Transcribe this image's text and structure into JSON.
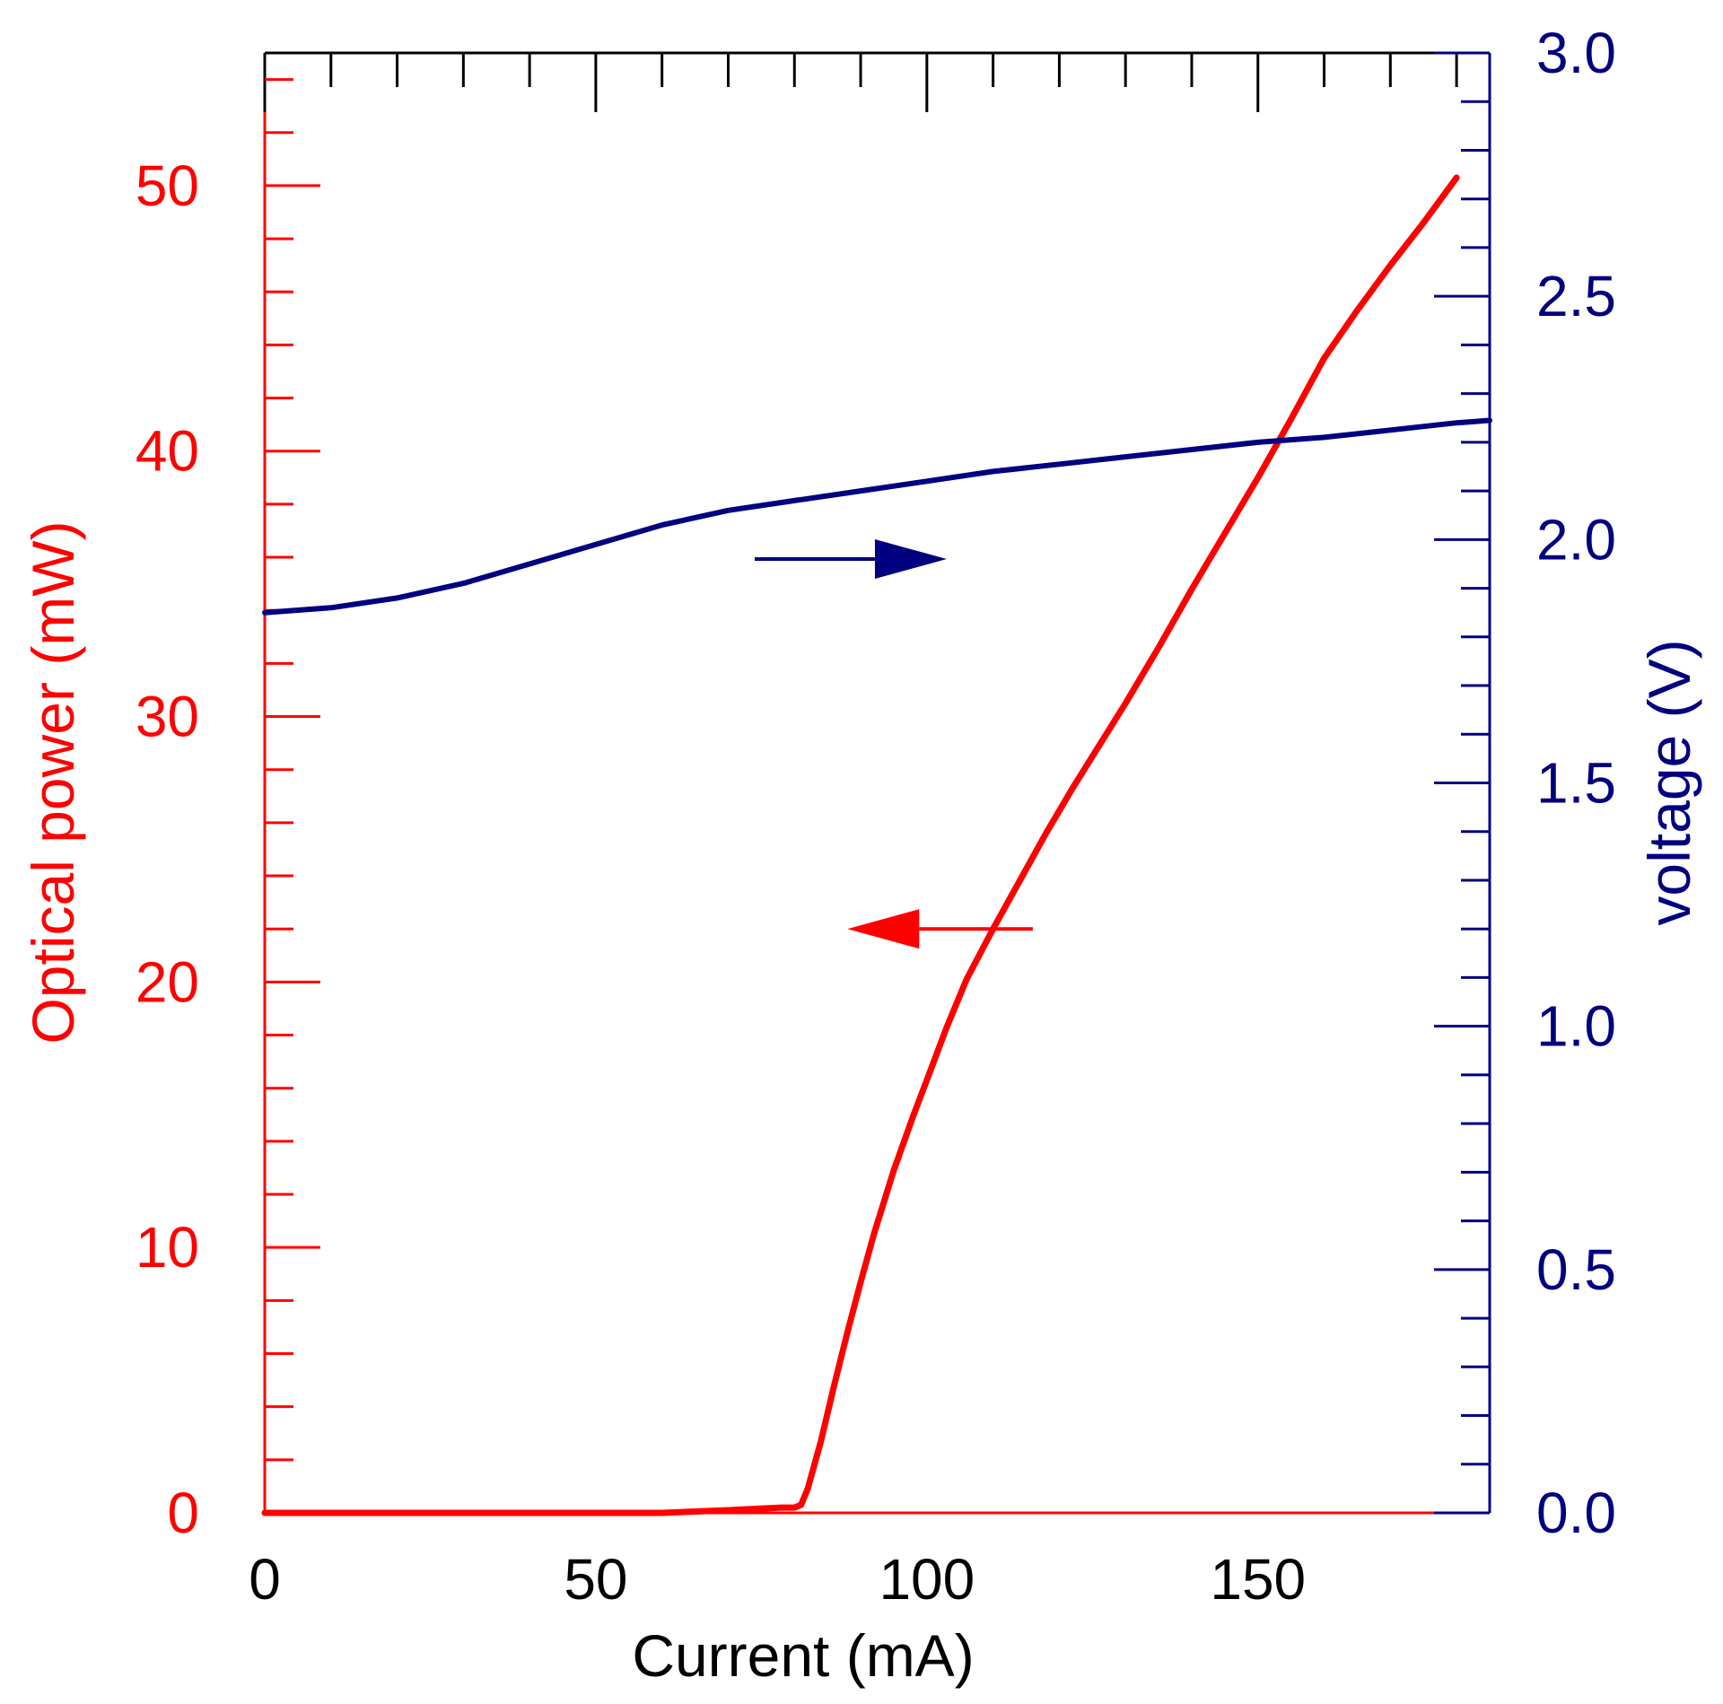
{
  "chart_data": {
    "type": "line",
    "title": "",
    "xlabel": "Current (mA)",
    "ylabel_left": "Optical power (mW)",
    "ylabel_right": "voltage (V)",
    "xlim": [
      0,
      185
    ],
    "ylim_left": [
      0,
      55
    ],
    "ylim_right": [
      0,
      3.0
    ],
    "x_ticks": [
      "0",
      "50",
      "100",
      "150"
    ],
    "y_left_ticks": [
      "0",
      "10",
      "20",
      "30",
      "40",
      "50"
    ],
    "y_right_ticks": [
      "0.0",
      "0.5",
      "1.0",
      "1.5",
      "2.0",
      "2.5",
      "3.0"
    ],
    "grid": false,
    "legend": "none",
    "colors": {
      "optical_power": "#ff0000",
      "voltage": "#000080",
      "frame": "#000000"
    },
    "series": [
      {
        "axis": "left",
        "color": "#ff0000",
        "x": [
          0,
          20,
          40,
          60,
          70,
          78,
          80,
          81,
          82,
          84,
          86,
          88,
          90,
          92,
          95,
          98,
          100,
          103,
          106,
          110,
          114,
          118,
          122,
          126,
          130,
          135,
          140,
          145,
          150,
          155,
          160,
          165,
          170,
          175,
          180
        ],
        "y": [
          0,
          0,
          0,
          0,
          0.1,
          0.2,
          0.2,
          0.3,
          0.9,
          2.7,
          4.8,
          6.8,
          8.7,
          10.5,
          12.9,
          15.0,
          16.3,
          18.3,
          20.1,
          22.0,
          23.8,
          25.6,
          27.3,
          28.9,
          30.5,
          32.6,
          34.8,
          36.9,
          39.0,
          41.2,
          43.5,
          45.3,
          47.0,
          48.6,
          50.3
        ]
      },
      {
        "axis": "right",
        "color": "#000080",
        "x": [
          0,
          10,
          20,
          30,
          40,
          50,
          60,
          70,
          80,
          90,
          100,
          110,
          120,
          130,
          140,
          150,
          160,
          170,
          180,
          185
        ],
        "y": [
          1.85,
          1.86,
          1.88,
          1.91,
          1.95,
          1.99,
          2.03,
          2.06,
          2.08,
          2.1,
          2.12,
          2.14,
          2.155,
          2.17,
          2.185,
          2.2,
          2.21,
          2.225,
          2.24,
          2.245
        ]
      }
    ],
    "annotations": [
      {
        "kind": "arrow",
        "direction": "right",
        "color": "#000080",
        "x_from": 74,
        "x_to": 103,
        "y_right": 1.96
      },
      {
        "kind": "arrow",
        "direction": "left",
        "color": "#ff0000",
        "x_from": 116,
        "x_to": 88,
        "y_left": 22.0
      }
    ]
  }
}
